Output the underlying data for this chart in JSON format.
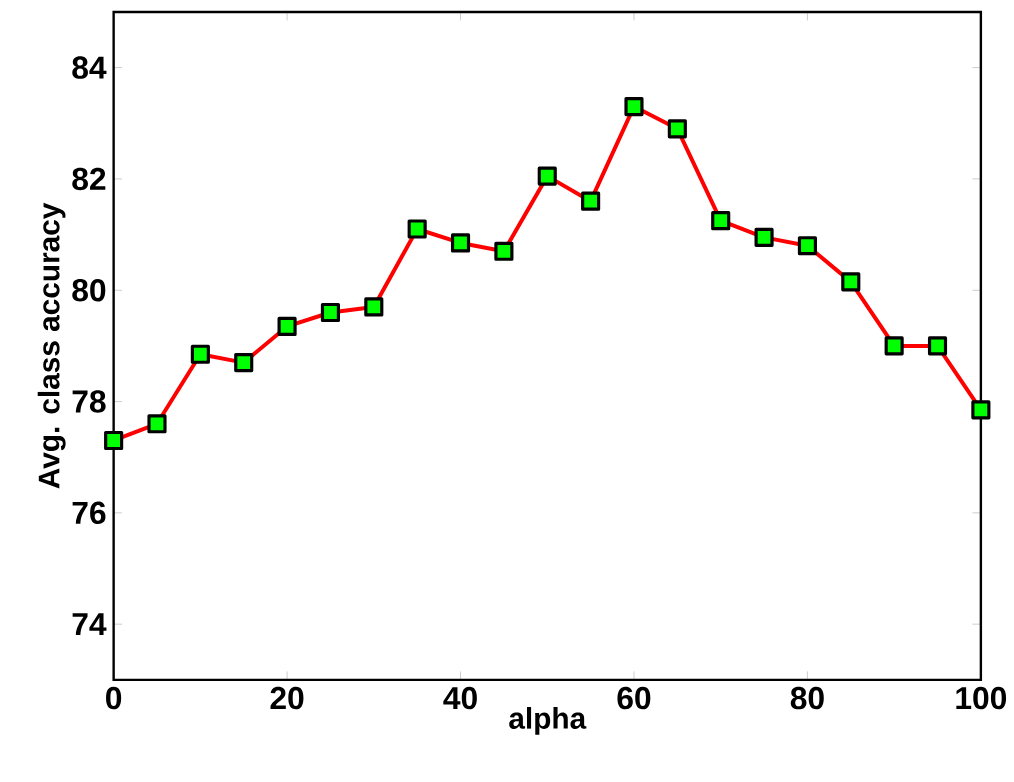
{
  "chart_data": {
    "type": "line",
    "xlabel": "alpha",
    "ylabel": "Avg. class accuracy",
    "x": [
      0,
      5,
      10,
      15,
      20,
      25,
      30,
      35,
      40,
      45,
      50,
      55,
      60,
      65,
      70,
      75,
      80,
      85,
      90,
      95,
      100
    ],
    "series": [
      {
        "color": "#ff0000",
        "values": [
          77.3,
          77.6,
          78.85,
          78.7,
          79.35,
          79.6,
          79.7,
          81.1,
          80.85,
          80.7,
          82.05,
          81.6,
          83.3,
          82.9,
          81.25,
          80.95,
          80.8,
          80.15,
          79.0,
          79.0,
          77.85
        ]
      }
    ],
    "xlim": [
      0,
      100
    ],
    "ylim": [
      73,
      85
    ],
    "xticks": [
      0,
      20,
      40,
      60,
      80,
      100
    ],
    "yticks": [
      74,
      76,
      78,
      80,
      82,
      84
    ],
    "marker": "square",
    "line_style": "solid",
    "grid": false
  }
}
